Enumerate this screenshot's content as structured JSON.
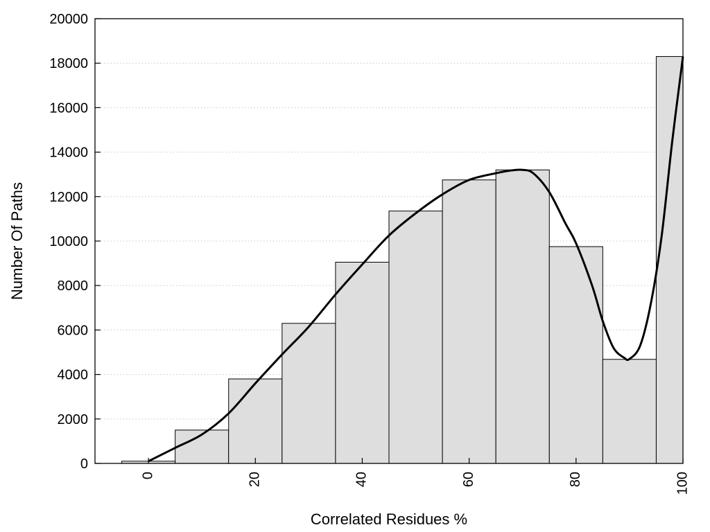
{
  "chart_data": {
    "type": "bar",
    "title": "",
    "xlabel": "Correlated Residues %",
    "ylabel": "Number Of Paths",
    "xlim": [
      -10,
      100
    ],
    "ylim": [
      0,
      20000
    ],
    "grid": {
      "y": true,
      "x": false,
      "style": "dotted"
    },
    "legend": "none",
    "bin_width": 10,
    "x_ticks": [
      0,
      20,
      40,
      60,
      80,
      100
    ],
    "x_tick_labels": [
      "0",
      "20",
      "40",
      "60",
      "80",
      "100"
    ],
    "y_ticks": [
      0,
      2000,
      4000,
      6000,
      8000,
      10000,
      12000,
      14000,
      16000,
      18000,
      20000
    ],
    "y_tick_labels": [
      "0",
      "2000",
      "4000",
      "6000",
      "8000",
      "10000",
      "12000",
      "14000",
      "16000",
      "18000",
      "20000"
    ],
    "series": [
      {
        "type": "bar",
        "x": [
          0,
          10,
          20,
          30,
          40,
          50,
          60,
          70,
          80,
          90,
          100
        ],
        "values": [
          100,
          1500,
          3800,
          6300,
          9050,
          11350,
          12750,
          13200,
          9750,
          4680,
          18300
        ],
        "color": "#dedede",
        "edge_color": "#000000"
      },
      {
        "type": "line",
        "x": [
          0,
          5,
          10,
          15,
          20,
          25,
          30,
          35,
          40,
          45,
          50,
          55,
          60,
          65,
          68,
          70,
          72,
          75,
          78,
          80,
          83,
          85,
          87,
          89,
          90,
          92,
          94,
          96,
          98,
          100
        ],
        "values": [
          100,
          700,
          1300,
          2250,
          3600,
          4900,
          6150,
          7600,
          8950,
          10250,
          11250,
          12100,
          12750,
          13050,
          13180,
          13200,
          13050,
          12200,
          10800,
          9900,
          8000,
          6400,
          5200,
          4750,
          4700,
          5300,
          7200,
          10200,
          14500,
          18300
        ],
        "color": "#000000"
      }
    ]
  }
}
